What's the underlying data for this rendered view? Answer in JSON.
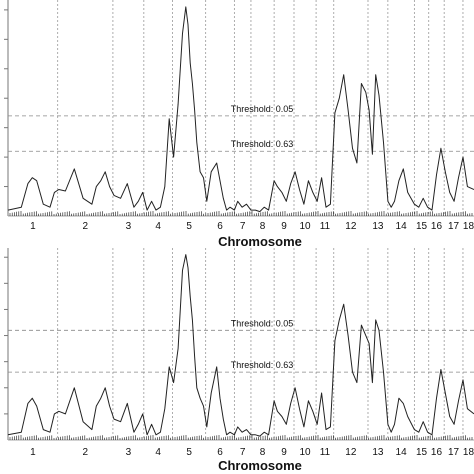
{
  "chart_data": [
    {
      "type": "line",
      "xlabel": "Chromosome",
      "ylabel": "",
      "ylim": [
        0,
        7.2
      ],
      "grid": false,
      "chromosomes": [
        "1",
        "2",
        "3",
        "4",
        "5",
        "6",
        "7",
        "8",
        "9",
        "10",
        "11",
        "12",
        "13",
        "14",
        "15",
        "16",
        "17",
        "18"
      ],
      "chromosome_bounds": [
        0,
        2.25,
        4.75,
        6.15,
        7.45,
        8.95,
        10.25,
        11.0,
        12.05,
        12.95,
        13.95,
        14.75,
        16.3,
        17.2,
        18.4,
        19.05,
        19.75,
        20.6,
        21.1
      ],
      "thresholds": [
        {
          "label": "Threshold: 0.05",
          "value": 3.4
        },
        {
          "label": "Threshold: 0.63",
          "value": 2.2
        }
      ],
      "series": [
        {
          "color": "#222222",
          "x": [
            0,
            0.6,
            0.9,
            1.1,
            1.3,
            1.6,
            1.9,
            2.1,
            2.3,
            2.6,
            3.0,
            3.4,
            3.8,
            4.0,
            4.2,
            4.4,
            4.6,
            4.8,
            5.1,
            5.4,
            5.7,
            5.9,
            6.1,
            6.3,
            6.5,
            6.7,
            6.9,
            7.1,
            7.3,
            7.5,
            7.7,
            7.9,
            8.05,
            8.15,
            8.25,
            8.35,
            8.45,
            8.55,
            8.7,
            8.85,
            9.0,
            9.2,
            9.45,
            9.6,
            9.75,
            9.9,
            10.05,
            10.25,
            10.4,
            10.6,
            10.8,
            11.0,
            11.2,
            11.4,
            11.6,
            11.8,
            12.05,
            12.2,
            12.4,
            12.6,
            12.8,
            13.0,
            13.2,
            13.4,
            13.6,
            13.8,
            14.0,
            14.2,
            14.4,
            14.6,
            14.8,
            15.0,
            15.2,
            15.4,
            15.6,
            15.8,
            16.0,
            16.2,
            16.35,
            16.5,
            16.65,
            16.8,
            17.0,
            17.2,
            17.35,
            17.5,
            17.7,
            17.9,
            18.1,
            18.4,
            18.6,
            18.8,
            19.0,
            19.2,
            19.4,
            19.6,
            19.8,
            20.0,
            20.2,
            20.4,
            20.6,
            20.8,
            21.1
          ],
          "y": [
            0.2,
            0.3,
            1.1,
            1.3,
            1.2,
            0.4,
            0.3,
            0.8,
            0.9,
            0.85,
            1.6,
            0.6,
            0.4,
            1.0,
            1.2,
            1.5,
            1.0,
            0.7,
            0.6,
            1.1,
            0.3,
            0.5,
            0.8,
            0.2,
            0.5,
            0.2,
            0.3,
            1.0,
            3.3,
            2.0,
            3.8,
            6.2,
            7.1,
            6.5,
            5.2,
            4.5,
            3.6,
            2.5,
            1.5,
            1.3,
            0.5,
            1.5,
            1.8,
            1.2,
            0.6,
            0.2,
            0.3,
            0.2,
            0.5,
            0.3,
            0.4,
            0.2,
            0.2,
            0.15,
            0.3,
            0.2,
            1.2,
            1.0,
            0.8,
            0.5,
            1.1,
            1.5,
            0.9,
            0.4,
            1.2,
            0.8,
            0.5,
            1.3,
            0.3,
            0.4,
            3.5,
            4.0,
            4.8,
            3.6,
            2.3,
            1.8,
            4.5,
            4.2,
            3.6,
            2.1,
            4.8,
            4.1,
            2.5,
            0.5,
            0.3,
            0.5,
            1.2,
            1.6,
            0.8,
            0.4,
            0.3,
            0.6,
            0.3,
            0.2,
            1.4,
            2.3,
            1.5,
            0.8,
            0.5,
            1.3,
            2.0,
            1.0,
            0.9
          ]
        }
      ]
    },
    {
      "type": "line",
      "xlabel": "Chromosome",
      "ylabel": "",
      "ylim": [
        0,
        7.2
      ],
      "grid": false,
      "chromosomes": [
        "1",
        "2",
        "3",
        "4",
        "5",
        "6",
        "7",
        "8",
        "9",
        "10",
        "11",
        "12",
        "13",
        "14",
        "15",
        "16",
        "17",
        "18"
      ],
      "chromosome_bounds": [
        0,
        2.25,
        4.75,
        6.15,
        7.45,
        8.95,
        10.25,
        11.0,
        12.05,
        12.95,
        13.95,
        14.75,
        16.3,
        17.2,
        18.4,
        19.05,
        19.75,
        20.6,
        21.1
      ],
      "thresholds": [
        {
          "label": "Threshold: 0.05",
          "value": 4.2
        },
        {
          "label": "Threshold: 0.63",
          "value": 2.6
        }
      ],
      "series": [
        {
          "color": "#222222",
          "x": [
            0,
            0.6,
            0.9,
            1.1,
            1.3,
            1.6,
            1.9,
            2.1,
            2.3,
            2.6,
            3.0,
            3.4,
            3.8,
            4.0,
            4.2,
            4.4,
            4.6,
            4.8,
            5.1,
            5.4,
            5.7,
            5.9,
            6.1,
            6.3,
            6.5,
            6.7,
            6.9,
            7.1,
            7.3,
            7.5,
            7.7,
            7.9,
            8.05,
            8.15,
            8.25,
            8.35,
            8.45,
            8.55,
            8.7,
            8.85,
            9.0,
            9.2,
            9.45,
            9.6,
            9.75,
            9.9,
            10.05,
            10.25,
            10.4,
            10.6,
            10.8,
            11.0,
            11.2,
            11.4,
            11.6,
            11.8,
            12.05,
            12.2,
            12.4,
            12.6,
            12.8,
            13.0,
            13.2,
            13.4,
            13.6,
            13.8,
            14.0,
            14.2,
            14.4,
            14.6,
            14.8,
            15.0,
            15.2,
            15.4,
            15.6,
            15.8,
            16.0,
            16.2,
            16.35,
            16.5,
            16.65,
            16.8,
            17.0,
            17.2,
            17.35,
            17.5,
            17.7,
            17.9,
            18.1,
            18.4,
            18.6,
            18.8,
            19.0,
            19.2,
            19.4,
            19.6,
            19.8,
            20.0,
            20.2,
            20.4,
            20.6,
            20.8,
            21.1
          ],
          "y": [
            0.2,
            0.3,
            1.4,
            1.6,
            1.3,
            0.4,
            0.3,
            1.0,
            1.1,
            1.0,
            2.0,
            0.7,
            0.4,
            1.3,
            1.6,
            2.0,
            1.3,
            0.8,
            0.7,
            1.4,
            0.3,
            0.6,
            1.0,
            0.2,
            0.6,
            0.2,
            0.3,
            1.2,
            2.8,
            2.2,
            3.5,
            6.5,
            7.1,
            6.6,
            5.5,
            4.6,
            3.2,
            2.0,
            1.6,
            1.3,
            0.5,
            1.8,
            2.8,
            1.6,
            0.8,
            0.2,
            0.3,
            0.2,
            0.5,
            0.3,
            0.4,
            0.2,
            0.2,
            0.15,
            0.3,
            0.2,
            1.5,
            1.1,
            0.9,
            0.6,
            1.4,
            2.0,
            1.2,
            0.5,
            1.5,
            1.1,
            0.6,
            1.8,
            0.4,
            0.5,
            3.8,
            4.6,
            5.2,
            4.0,
            2.6,
            2.2,
            4.4,
            4.0,
            3.7,
            2.2,
            4.6,
            4.2,
            2.6,
            0.6,
            0.3,
            0.6,
            1.6,
            1.4,
            0.9,
            0.4,
            0.3,
            0.7,
            0.3,
            0.2,
            1.6,
            2.7,
            1.8,
            0.9,
            0.6,
            1.5,
            2.3,
            1.2,
            1.0
          ]
        }
      ]
    }
  ]
}
